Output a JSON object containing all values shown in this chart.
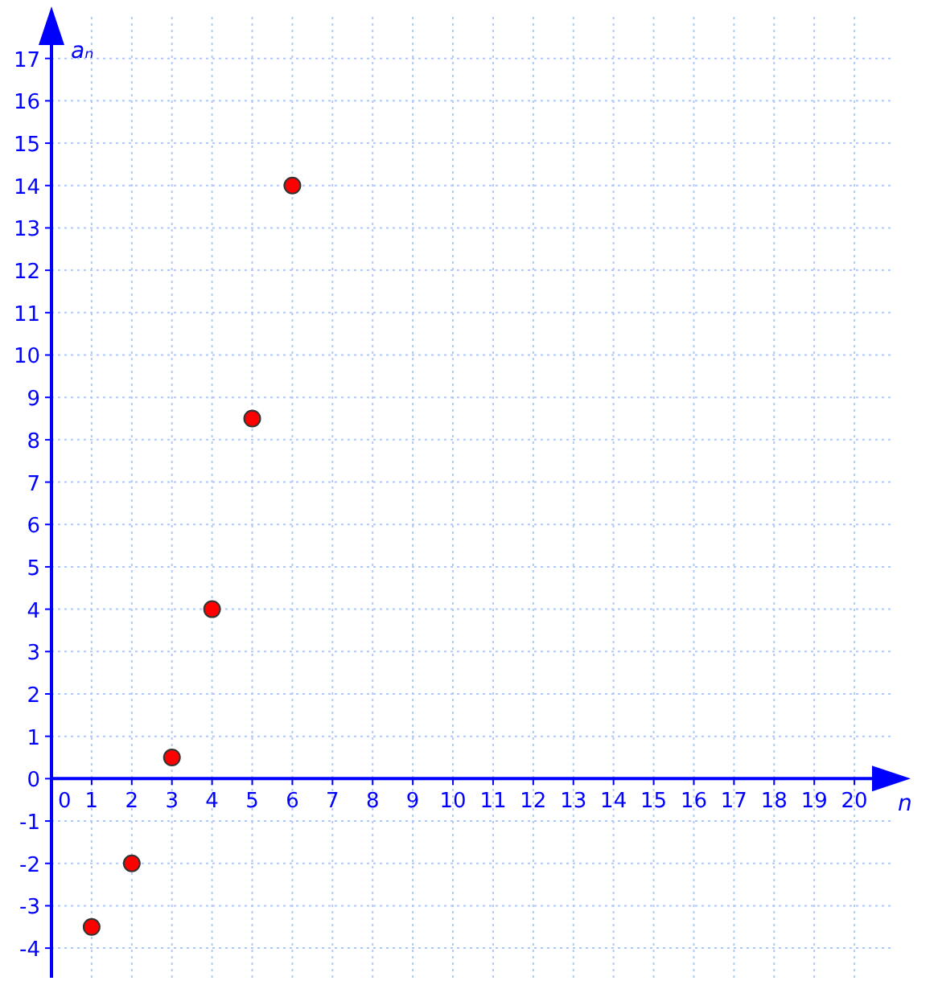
{
  "chart_data": {
    "type": "scatter",
    "xlabel": "n",
    "ylabel": "aₙ",
    "x": [
      1,
      2,
      3,
      4,
      5,
      6
    ],
    "series": [
      {
        "color": "#ff0000",
        "values": [
          -3.5,
          -2,
          0.5,
          4,
          8.5,
          14
        ]
      }
    ],
    "xlim": [
      0,
      21
    ],
    "ylim": [
      -4.7,
      18
    ],
    "xticks": [
      0,
      1,
      2,
      3,
      4,
      5,
      6,
      7,
      8,
      9,
      10,
      11,
      12,
      13,
      14,
      15,
      16,
      17,
      18,
      19,
      20
    ],
    "yticks": [
      -4,
      -3,
      -2,
      -1,
      0,
      1,
      2,
      3,
      4,
      5,
      6,
      7,
      8,
      9,
      10,
      11,
      12,
      13,
      14,
      15,
      16,
      17
    ],
    "grid": true,
    "marker": "circle"
  }
}
